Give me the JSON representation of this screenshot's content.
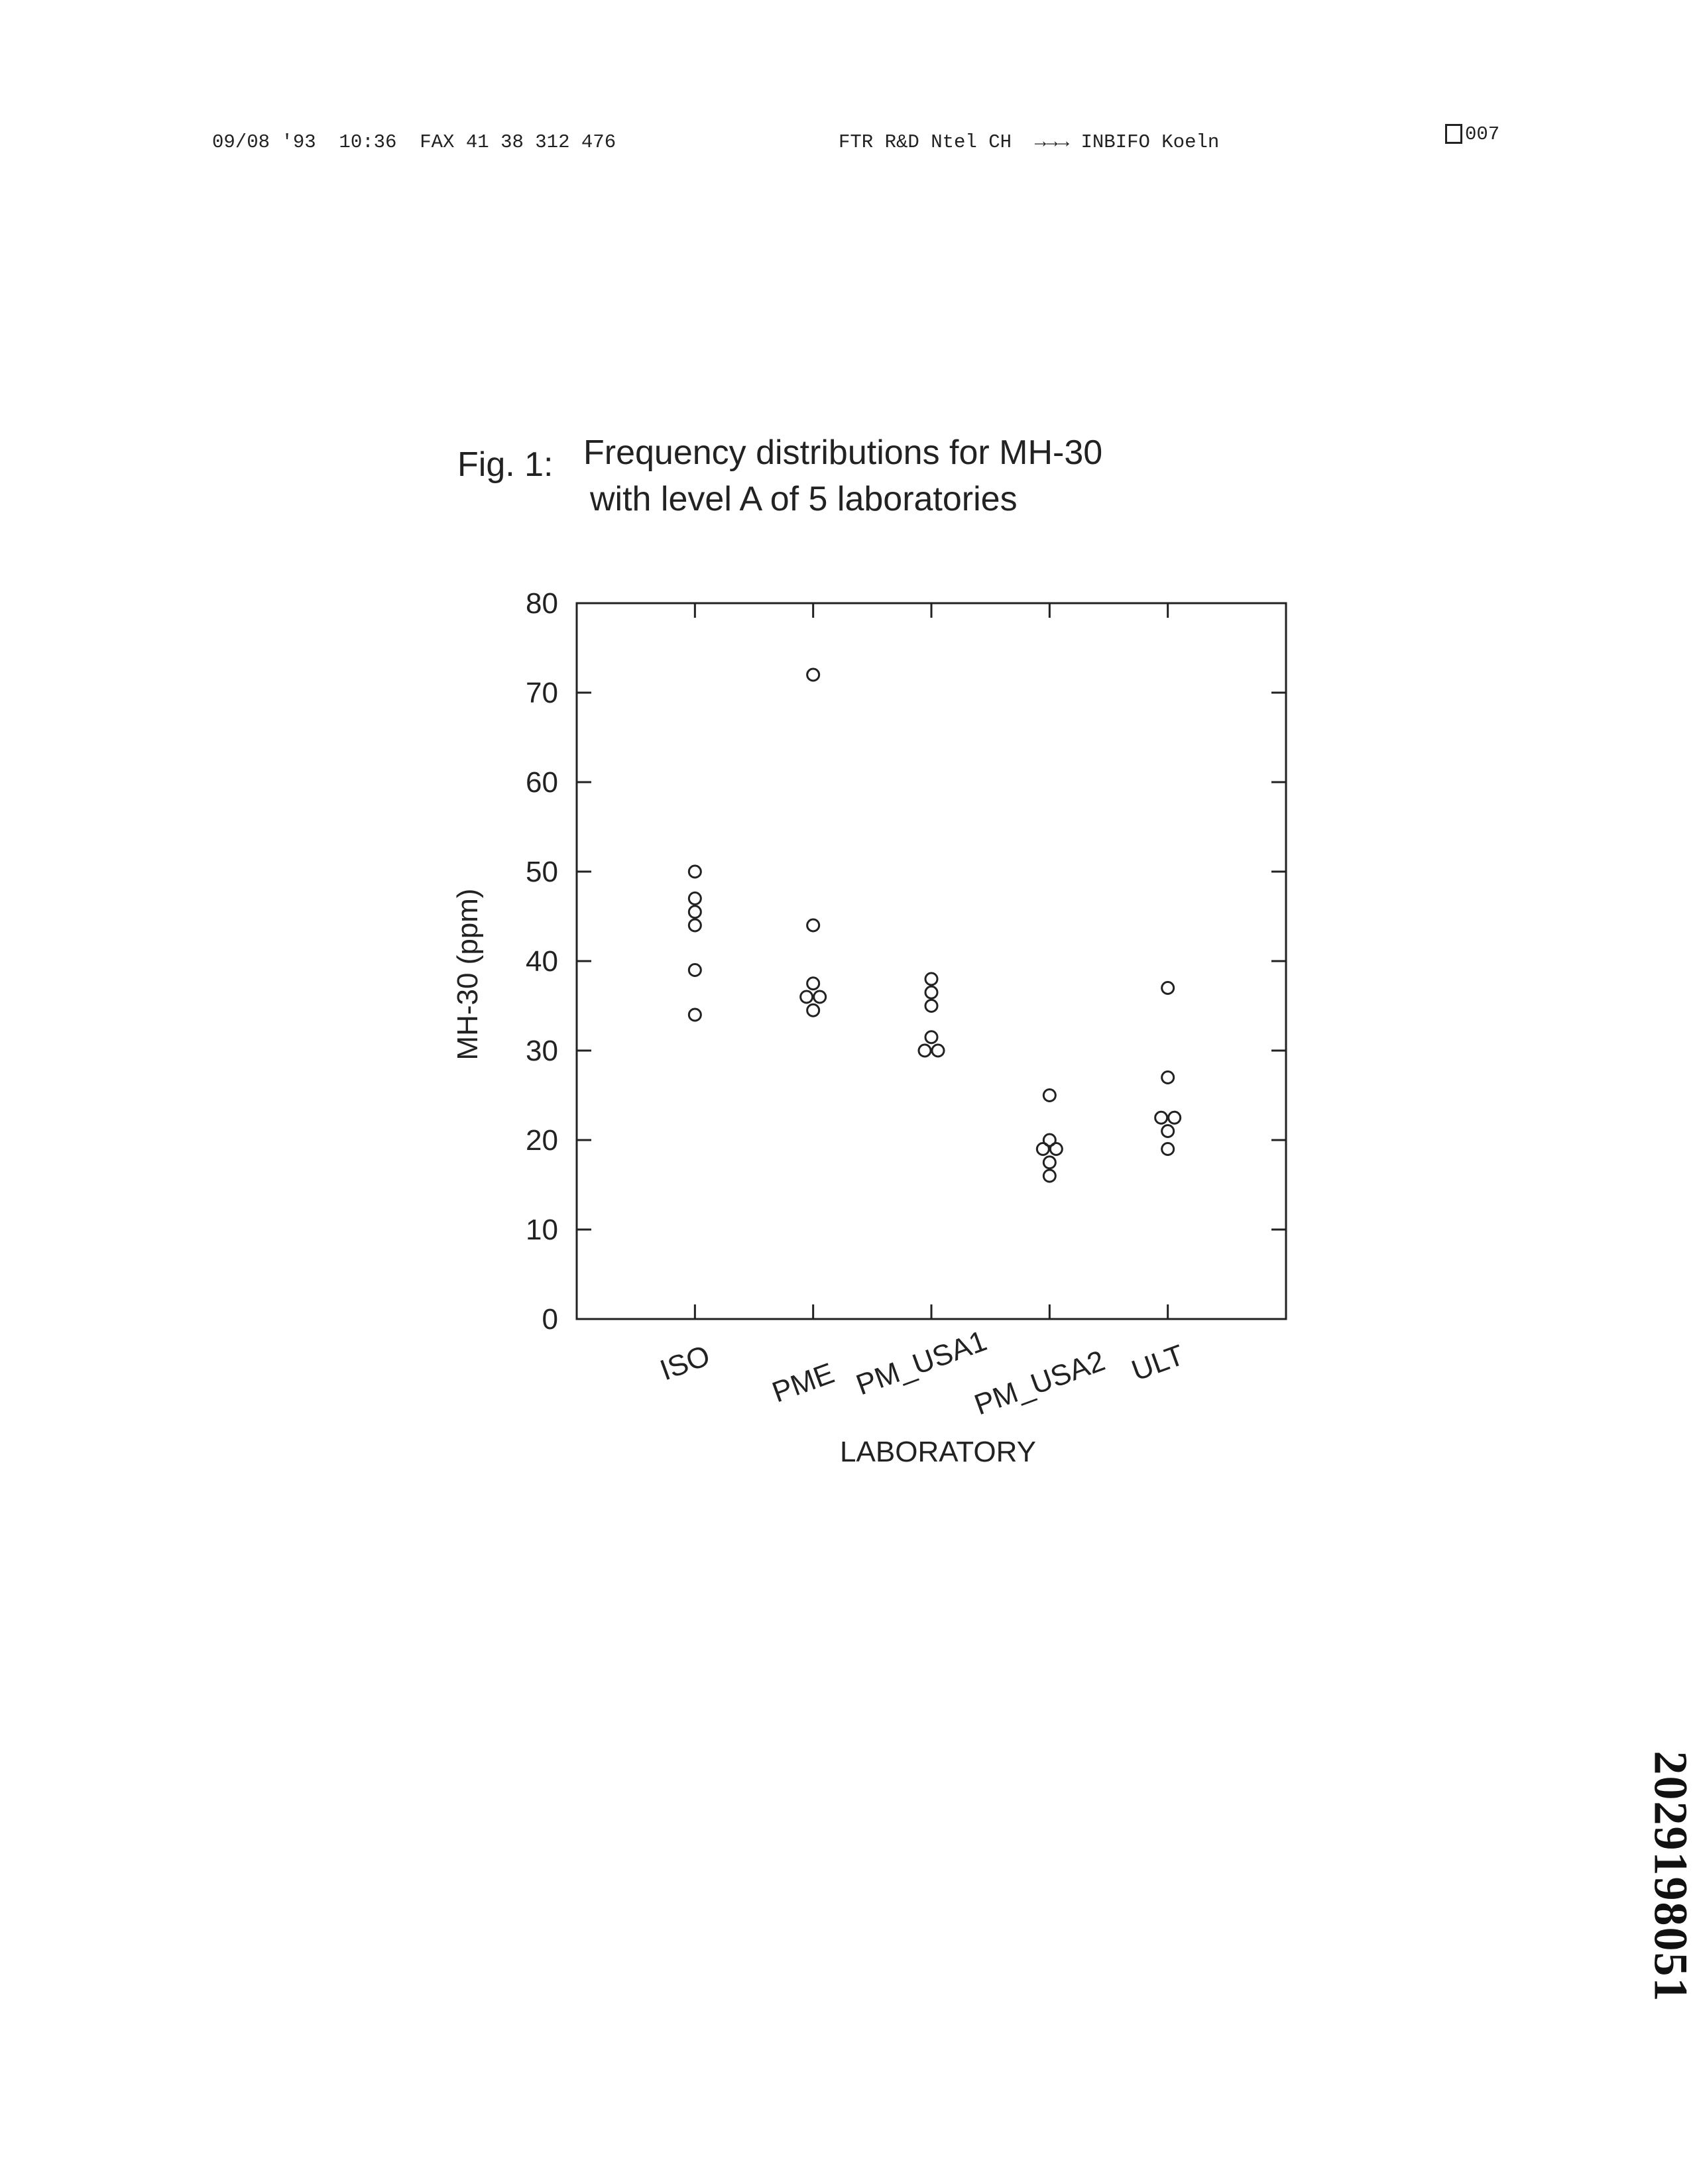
{
  "header": {
    "left": "09/08 '93  10:36  FAX 41 38 312 476",
    "middle": "FTR R&D Ntel CH  →→→ INBIFO Koeln",
    "page": "007"
  },
  "side_number": "2029198051",
  "chart_data": {
    "type": "strip",
    "figure_label": "Fig.  1:",
    "title_lines": [
      "Frequency distributions for MH-30",
      "with level A of 5 laboratories"
    ],
    "x_label": "LABORATORY",
    "y_label": "MH-30 (ppm)",
    "categories": [
      "ISO",
      "PME",
      "PM_USA1",
      "PM_USA2",
      "ULT"
    ],
    "values": [
      [
        50,
        47,
        45.5,
        44,
        39,
        34
      ],
      [
        72,
        44,
        37.5,
        36,
        36,
        34.5
      ],
      [
        38,
        36.5,
        35,
        31.5,
        30,
        30
      ],
      [
        25,
        20,
        19,
        19,
        17.5,
        16
      ],
      [
        37,
        27,
        22.5,
        22.5,
        21,
        19
      ]
    ],
    "ylim": [
      0,
      80
    ],
    "yticks": [
      0,
      10,
      20,
      30,
      40,
      50,
      60,
      70,
      80
    ],
    "color": "#222"
  }
}
